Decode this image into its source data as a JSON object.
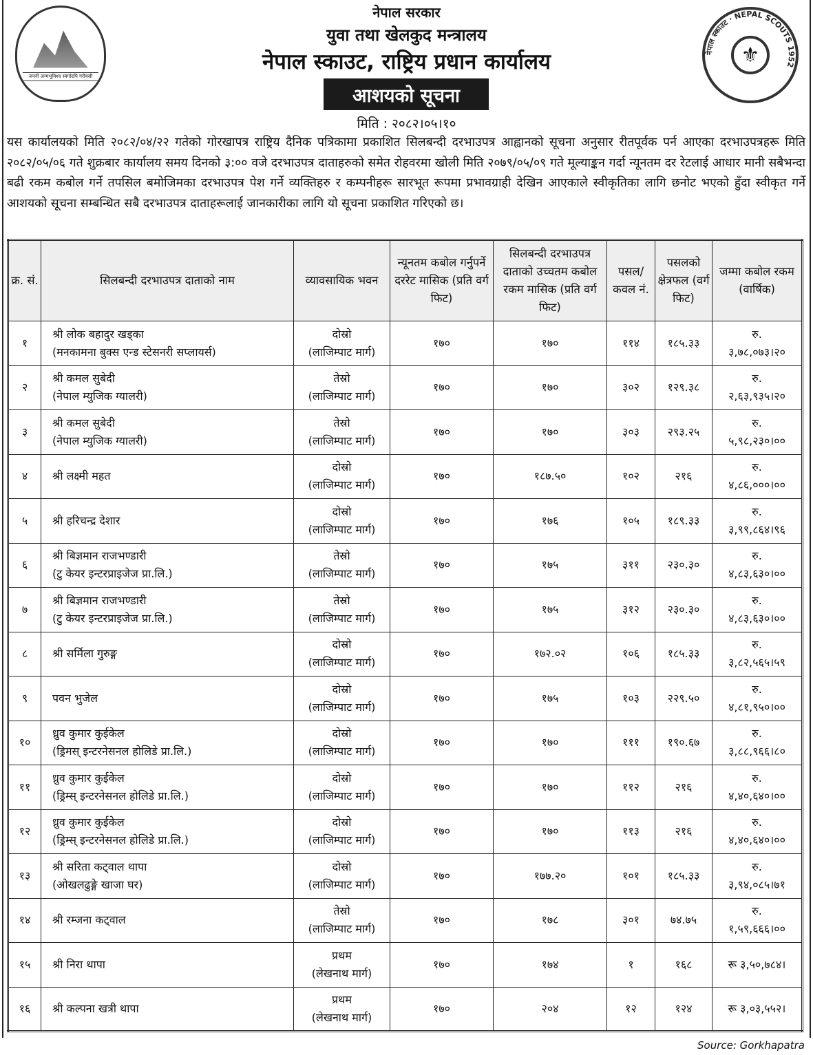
{
  "header": {
    "line1": "नेपाल सरकार",
    "line2": "युवा तथा खेलकुद मन्त्रालय",
    "line3": "नेपाल स्काउट, राष्ट्रिय प्रधान कार्यालय",
    "notice_title": "आशयको सूचना",
    "date": "मिति : २०८२।०५।१०",
    "govt_logo_text": "जननी जन्मभूमिश्च स्वर्गादपि गरीयसी",
    "scout_logo_text": "नेपाल स्काउट · NEPAL SCOUTS 1952"
  },
  "paragraph": "यस कार्यालयको मिति २०८२/०४/२२ गतेको गोरखापत्र राष्ट्रिय दैनिक पत्रिकामा प्रकाशित सिलबन्दी दरभाउपत्र आह्वानको सूचना अनुसार रीतपूर्वक पर्न आएका दरभाउपत्रहरू मिति २०८२/०५/०६ गते शुक्रबार कार्यालय समय दिनको ३:०० वजे दरभाउपत्र दाताहरुको समेत रोहवरमा खोली मिति २०७९/०५/०९ गते मूल्याङ्कन गर्दा न्यूनतम दर रेटलाई आधार मानी सबैभन्दा बढी रकम कबोल गर्ने तपसिल बमोजिमका दरभाउपत्र पेश गर्ने व्यक्तिहरु र कम्पनीहरू सारभूत रूपमा प्रभावग्राही देखिन आएकाले स्वीकृतिका लागि छनोट भएको हुँदा स्वीकृत गर्ने आशयको सूचना सम्बन्धित सबै दरभाउपत्र दाताहरूलाई जानकारीका लागि यो सूचना प्रकाशित गरिएको छ।",
  "table": {
    "headers": [
      "क्र. सं.",
      "सिलबन्दी दरभाउपत्र दाताको नाम",
      "व्यावसायिक भवन",
      "न्यूनतम कबोल गर्नुपर्ने दररेट मासिक (प्रति वर्ग फिट)",
      "सिलबन्दी दरभाउपत्र दाताको उच्चतम कबोल रकम मासिक (प्रति वर्ग फिट)",
      "पसल/कवल नं.",
      "पसलको क्षेत्रफल (वर्ग फिट)",
      "जम्मा कबोल रकम (वार्षिक)"
    ],
    "rows": [
      {
        "sn": "१",
        "name": [
          "श्री लोक बहादुर खड्का",
          "(मनकामना बुक्स एन्ड स्टेसनरी सप्लायर्स)"
        ],
        "building": [
          "दोस्रो",
          "(लाजिम्पाट मार्ग)"
        ],
        "min_rate": "१७०",
        "highest": "१७०",
        "shop_no": "११४",
        "area": "१८५.३३",
        "amount": [
          "रु.",
          "३,७८,०७३।२०"
        ]
      },
      {
        "sn": "२",
        "name": [
          "श्री कमल सुबेदी",
          "(नेपाल म्युजिक ग्यालरी)"
        ],
        "building": [
          "तेस्रो",
          "(लाजिम्पाट मार्ग)"
        ],
        "min_rate": "१७०",
        "highest": "१७०",
        "shop_no": "३०२",
        "area": "१२९.३८",
        "amount": [
          "रु.",
          "२,६३,९३५।२०"
        ]
      },
      {
        "sn": "३",
        "name": [
          "श्री कमल सुबेदी",
          "(नेपाल म्युजिक ग्यालरी)"
        ],
        "building": [
          "तेस्रो",
          "(लाजिम्पाट मार्ग)"
        ],
        "min_rate": "१७०",
        "highest": "१७०",
        "shop_no": "३०३",
        "area": "२९३.२५",
        "amount": [
          "रु.",
          "५,९८,२३०।००"
        ]
      },
      {
        "sn": "४",
        "name": [
          "श्री लक्ष्मी महत"
        ],
        "building": [
          "दोस्रो",
          "(लाजिम्पाट मार्ग)"
        ],
        "min_rate": "१७०",
        "highest": "१८७.५०",
        "shop_no": "१०२",
        "area": "२१६",
        "amount": [
          "रु.",
          "४,८६,०००।००"
        ]
      },
      {
        "sn": "५",
        "name": [
          "श्री हरिचन्द्र देशार"
        ],
        "building": [
          "दोस्रो",
          "(लाजिम्पाट मार्ग)"
        ],
        "min_rate": "१७०",
        "highest": "१७६",
        "shop_no": "१०५",
        "area": "१८९.३३",
        "amount": [
          "रु.",
          "३,९९,८६४।९६"
        ]
      },
      {
        "sn": "६",
        "name": [
          "श्री बिज्ञमान राजभण्डारी",
          "(टु केयर इन्टरप्राइजेज प्रा.लि.)"
        ],
        "building": [
          "तेस्रो",
          "(लाजिम्पाट मार्ग)"
        ],
        "min_rate": "१७०",
        "highest": "१७५",
        "shop_no": "३११",
        "area": "२३०.३०",
        "amount": [
          "रु.",
          "४,८३,६३०।००"
        ]
      },
      {
        "sn": "७",
        "name": [
          "श्री बिज्ञमान राजभण्डारी",
          "(टु केयर इन्टरप्राइजेज प्रा.लि.)"
        ],
        "building": [
          "तेस्रो",
          "(लाजिम्पाट मार्ग)"
        ],
        "min_rate": "१७०",
        "highest": "१७५",
        "shop_no": "३१२",
        "area": "२३०.३०",
        "amount": [
          "रु.",
          "४,८३,६३०।००"
        ]
      },
      {
        "sn": "८",
        "name": [
          "श्री सर्मिला गुरुङ्ग"
        ],
        "building": [
          "दोस्रो",
          "(लाजिम्पाट मार्ग)"
        ],
        "min_rate": "१७०",
        "highest": "१७२.०२",
        "shop_no": "१०६",
        "area": "१८५.३३",
        "amount": [
          "रु.",
          "३,८२,५६५।५९"
        ]
      },
      {
        "sn": "९",
        "name": [
          "पवन भुजेल"
        ],
        "building": [
          "दोस्रो",
          "(लाजिम्पाट मार्ग)"
        ],
        "min_rate": "१७०",
        "highest": "१७५",
        "shop_no": "१०३",
        "area": "२२९.५०",
        "amount": [
          "रु.",
          "४,८१,९५०।००"
        ]
      },
      {
        "sn": "१०",
        "name": [
          "ध्रुव कुमार कुईकेल",
          "(ड्रिमस् इन्टरनेसनल होलिडे प्रा.लि.)"
        ],
        "building": [
          "दोस्रो",
          "(लाजिम्पाट मार्ग)"
        ],
        "min_rate": "१७०",
        "highest": "१७०",
        "shop_no": "१११",
        "area": "१९०.६७",
        "amount": [
          "रु.",
          "३,८८,९६६।८०"
        ]
      },
      {
        "sn": "११",
        "name": [
          "ध्रुव कुमार कुईकेल",
          "(ड्रिम्स् इन्टरनेसनल होलिडे प्रा.लि.)"
        ],
        "building": [
          "दोस्रो",
          "(लाजिम्पाट मार्ग)"
        ],
        "min_rate": "१७०",
        "highest": "१७०",
        "shop_no": "११२",
        "area": "२१६",
        "amount": [
          "रु.",
          "४,४०,६४०।००"
        ]
      },
      {
        "sn": "१२",
        "name": [
          "ध्रुव कुमार कुईकेल",
          "(ड्रिम्स् इन्टरनेसनल होलिडे प्रा.लि.)"
        ],
        "building": [
          "दोस्रो",
          "(लाजिम्पाट मार्ग)"
        ],
        "min_rate": "१७०",
        "highest": "१७०",
        "shop_no": "११३",
        "area": "२१६",
        "amount": [
          "रु.",
          "४,४०,६४०।००"
        ]
      },
      {
        "sn": "१३",
        "name": [
          "श्री सरिता कट्वाल थापा",
          "(ओखलढुङ्गे खाजा घर)"
        ],
        "building": [
          "दोस्रो",
          "(लाजिम्पाट मार्ग)"
        ],
        "min_rate": "१७०",
        "highest": "१७७.२०",
        "shop_no": "१०१",
        "area": "१८५.३३",
        "amount": [
          "रु.",
          "३,९४,०८५।७१"
        ]
      },
      {
        "sn": "१४",
        "name": [
          "श्री रम्जना कट्वाल"
        ],
        "building": [
          "तेस्रो",
          "(लाजिम्पाट मार्ग)"
        ],
        "min_rate": "१७०",
        "highest": "१७८",
        "shop_no": "३०१",
        "area": "७४.७५",
        "amount": [
          "रु.",
          "१,५९,६६६।००"
        ]
      },
      {
        "sn": "१५",
        "name": [
          "श्री निरा थापा"
        ],
        "building": [
          "प्रथम",
          "(लेखनाथ मार्ग)"
        ],
        "min_rate": "१७०",
        "highest": "१७४",
        "shop_no": "१",
        "area": "१६८",
        "amount": [
          "रू ३,५०,७८४।"
        ]
      },
      {
        "sn": "१६",
        "name": [
          "श्री कल्पना खत्री थापा"
        ],
        "building": [
          "प्रथम",
          "(लेखनाथ मार्ग)"
        ],
        "min_rate": "१७०",
        "highest": "२०४",
        "shop_no": "१२",
        "area": "१२४",
        "amount": [
          "रू ३,०३,५५२।"
        ]
      }
    ]
  },
  "source": "Source: Gorkhapatra"
}
